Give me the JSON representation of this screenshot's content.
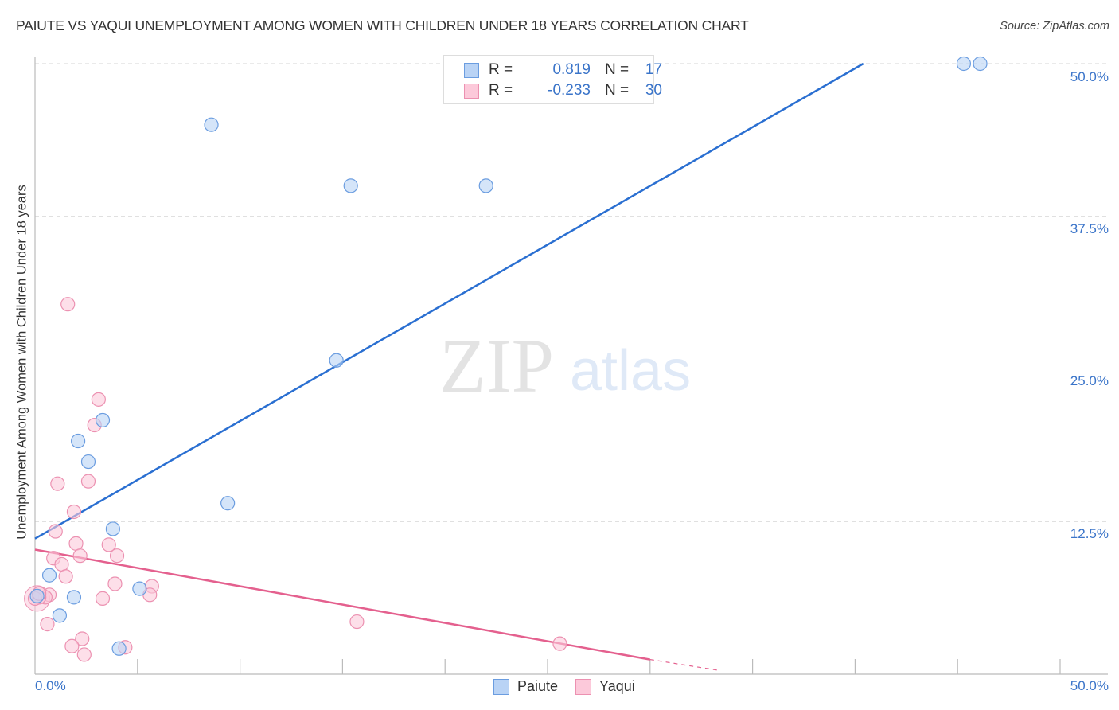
{
  "title": "PAIUTE VS YAQUI UNEMPLOYMENT AMONG WOMEN WITH CHILDREN UNDER 18 YEARS CORRELATION CHART",
  "source": "Source: ZipAtlas.com",
  "watermark": {
    "zip": "ZIP",
    "atlas": "atlas"
  },
  "legend": {
    "rows": [
      {
        "r_label": "R =",
        "r_value": "0.819",
        "n_label": "N =",
        "n_value": "17",
        "series": "Paiute"
      },
      {
        "r_label": "R =",
        "r_value": "-0.233",
        "n_label": "N =",
        "n_value": "30",
        "series": "Yaqui"
      }
    ]
  },
  "bottom_legend": [
    "Paiute",
    "Yaqui"
  ],
  "colors": {
    "paiute_fill": "#b9d3f5",
    "paiute_stroke": "#6b9de0",
    "paiute_line": "#2a6fd1",
    "yaqui_fill": "#fcc9da",
    "yaqui_stroke": "#ec91b1",
    "yaqui_line": "#e4608e",
    "axis_text": "#3a74c9"
  },
  "chart_data": {
    "type": "scatter",
    "title": "PAIUTE VS YAQUI UNEMPLOYMENT AMONG WOMEN WITH CHILDREN UNDER 18 YEARS CORRELATION CHART",
    "xlabel": "",
    "ylabel": "Unemployment Among Women with Children Under 18 years",
    "xlim": [
      0,
      50
    ],
    "ylim": [
      0,
      50
    ],
    "x_tick_labels": [
      "0.0%",
      "50.0%"
    ],
    "y_tick_labels": [
      "12.5%",
      "25.0%",
      "37.5%",
      "50.0%"
    ],
    "y_ticks": [
      12.5,
      25.0,
      37.5,
      50.0
    ],
    "grid": "horizontal dashed",
    "legend_position": "top-center",
    "series": [
      {
        "name": "Paiute",
        "R": 0.819,
        "N": 17,
        "points": [
          [
            8.6,
            45.0
          ],
          [
            15.4,
            40.0
          ],
          [
            22.0,
            40.0
          ],
          [
            45.3,
            50.0
          ],
          [
            46.1,
            50.0
          ],
          [
            14.7,
            25.7
          ],
          [
            3.3,
            20.8
          ],
          [
            2.1,
            19.1
          ],
          [
            2.6,
            17.4
          ],
          [
            9.4,
            14.0
          ],
          [
            3.8,
            11.9
          ],
          [
            0.7,
            8.1
          ],
          [
            1.9,
            6.3
          ],
          [
            5.1,
            7.0
          ],
          [
            1.2,
            4.8
          ],
          [
            4.1,
            2.1
          ],
          [
            0.1,
            6.4
          ]
        ],
        "trendline": {
          "x": [
            0,
            40.4
          ],
          "y": [
            11.1,
            50.0
          ]
        }
      },
      {
        "name": "Yaqui",
        "R": -0.233,
        "N": 30,
        "points": [
          [
            1.6,
            30.3
          ],
          [
            3.1,
            22.5
          ],
          [
            2.9,
            20.4
          ],
          [
            1.1,
            15.6
          ],
          [
            2.6,
            15.8
          ],
          [
            1.9,
            13.3
          ],
          [
            1.0,
            11.7
          ],
          [
            2.0,
            10.7
          ],
          [
            3.6,
            10.6
          ],
          [
            0.9,
            9.5
          ],
          [
            2.2,
            9.7
          ],
          [
            4.0,
            9.7
          ],
          [
            1.3,
            9.0
          ],
          [
            1.5,
            8.0
          ],
          [
            3.9,
            7.4
          ],
          [
            5.7,
            7.2
          ],
          [
            5.6,
            6.5
          ],
          [
            3.3,
            6.2
          ],
          [
            0.7,
            6.5
          ],
          [
            0.5,
            6.3
          ],
          [
            0.2,
            6.3
          ],
          [
            0.6,
            4.1
          ],
          [
            2.3,
            2.9
          ],
          [
            1.8,
            2.3
          ],
          [
            2.4,
            1.6
          ],
          [
            4.4,
            2.2
          ],
          [
            15.7,
            4.3
          ],
          [
            25.6,
            2.5
          ],
          [
            0.0,
            6.2
          ],
          [
            0.2,
            6.6
          ]
        ],
        "trendline": {
          "x": [
            0,
            30.0
          ],
          "y": [
            10.2,
            1.2
          ],
          "dashed_extension": {
            "x": [
              30.0,
              33.4
            ],
            "y": [
              1.2,
              0.3
            ]
          }
        }
      }
    ]
  }
}
